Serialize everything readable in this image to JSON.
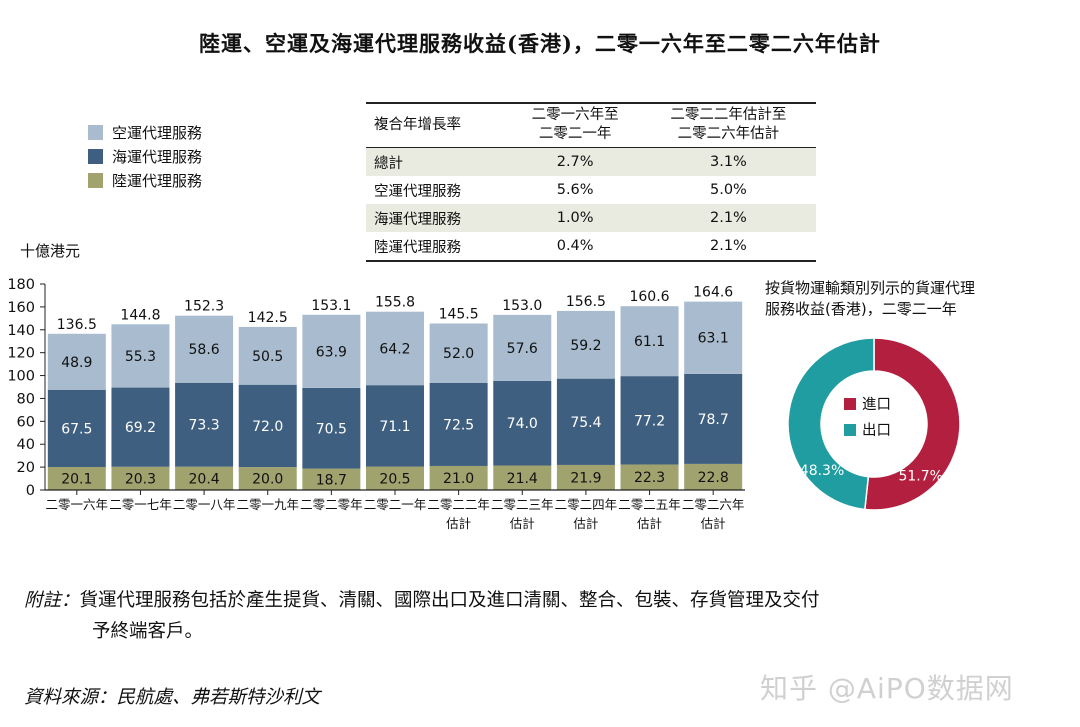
{
  "title": "陸運、空運及海運代理服務收益(香港)，二零一六年至二零二六年估計",
  "legend": [
    {
      "label": "空運代理服務",
      "color": "#a9bccf"
    },
    {
      "label": "海運代理服務",
      "color": "#3f5f80"
    },
    {
      "label": "陸運代理服務",
      "color": "#a1a36f"
    }
  ],
  "cagr_table": {
    "header": {
      "row_label": "複合年增長率",
      "col1_line1": "二零一六年至",
      "col1_line2": "二零二一年",
      "col2_line1": "二零二二年估計至",
      "col2_line2": "二零二六年估計"
    },
    "rows": [
      {
        "label": "總計",
        "v1": "2.7%",
        "v2": "3.1%"
      },
      {
        "label": "空運代理服務",
        "v1": "5.6%",
        "v2": "5.0%"
      },
      {
        "label": "海運代理服務",
        "v1": "1.0%",
        "v2": "2.1%"
      },
      {
        "label": "陸運代理服務",
        "v1": "0.4%",
        "v2": "2.1%"
      }
    ]
  },
  "chart_data": [
    {
      "type": "bar",
      "stacked": true,
      "ylabel": "十億港元",
      "ylim": [
        0,
        180
      ],
      "yticks": [
        0,
        20,
        40,
        60,
        80,
        100,
        120,
        140,
        160,
        180
      ],
      "categories": [
        [
          "二零一六年"
        ],
        [
          "二零一七年"
        ],
        [
          "二零一八年"
        ],
        [
          "二零一九年"
        ],
        [
          "二零二零年"
        ],
        [
          "二零二一年"
        ],
        [
          "二零二二年",
          "估計"
        ],
        [
          "二零二三年",
          "估計"
        ],
        [
          "二零二四年",
          "估計"
        ],
        [
          "二零二五年",
          "估計"
        ],
        [
          "二零二六年",
          "估計"
        ]
      ],
      "series": [
        {
          "name": "陸運代理服務",
          "color": "#a1a36f",
          "values": [
            20.1,
            20.3,
            20.4,
            20.0,
            18.7,
            20.5,
            21.0,
            21.4,
            21.9,
            22.3,
            22.8
          ]
        },
        {
          "name": "海運代理服務",
          "color": "#3f5f80",
          "values": [
            67.5,
            69.2,
            73.3,
            72.0,
            70.5,
            71.1,
            72.5,
            74.0,
            75.4,
            77.2,
            78.7
          ]
        },
        {
          "name": "空運代理服務",
          "color": "#a9bccf",
          "values": [
            48.9,
            55.3,
            58.6,
            50.5,
            63.9,
            64.2,
            52.0,
            57.6,
            59.2,
            61.1,
            63.1
          ]
        }
      ],
      "totals": [
        136.5,
        144.8,
        152.3,
        142.5,
        153.1,
        155.8,
        145.5,
        153.0,
        156.5,
        160.6,
        164.6
      ],
      "legend_position": "top-left"
    },
    {
      "type": "pie",
      "donut": true,
      "title_lines": [
        "按貨物運輸類別列示的貨運代理",
        "服務收益(香港)，二零二一年"
      ],
      "slices": [
        {
          "label": "進口",
          "value": 51.7,
          "display": "51.7%",
          "color": "#b3203f"
        },
        {
          "label": "出口",
          "value": 48.3,
          "display": "48.3%",
          "color": "#1f9da0"
        }
      ]
    }
  ],
  "note": {
    "label": "附註：",
    "line1": "貨運代理服務包括於產生提貨、清關、國際出口及進口清關、整合、包裝、存貨管理及交付",
    "line2": "予終端客戶。"
  },
  "source": "資料來源：民航處、弗若斯特沙利文",
  "watermark": "知乎 @AiPO数据网"
}
